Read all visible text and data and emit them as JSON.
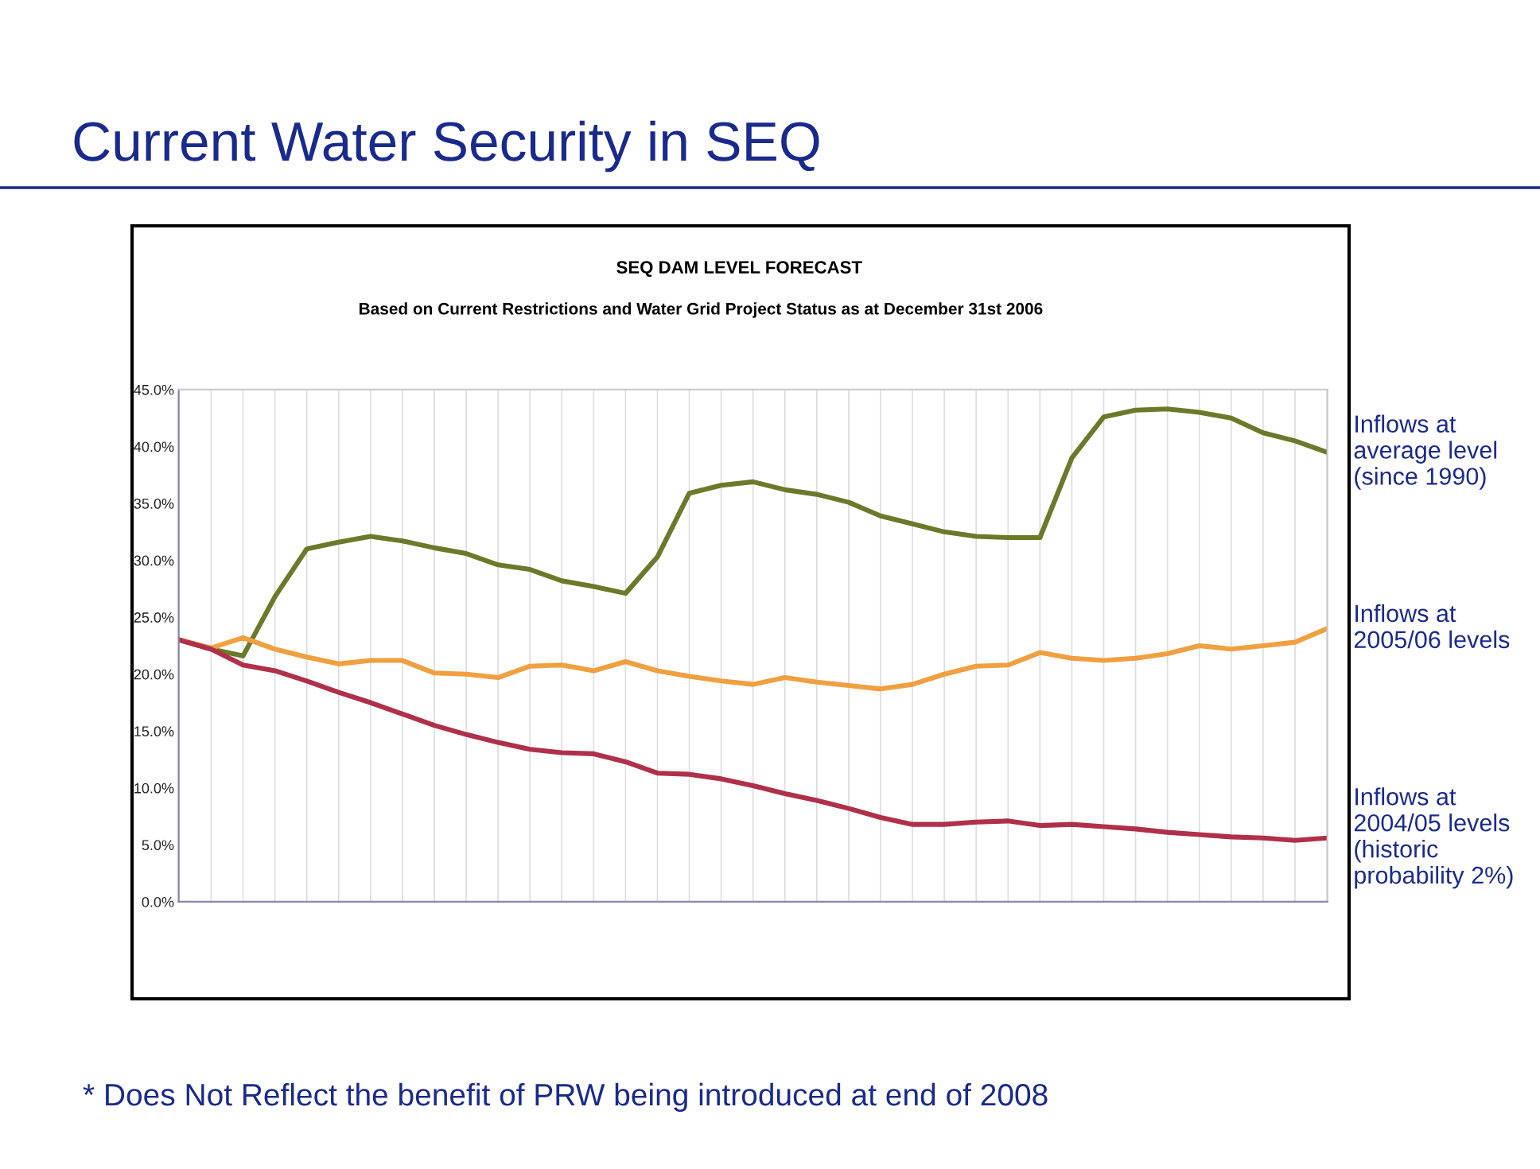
{
  "chart_data": {
    "type": "line",
    "title": "SEQ DAM LEVEL FORECAST",
    "subtitle": "Based on Current Restrictions and Water Grid Project Status as at December 31st 2006",
    "annotations": [
      "Current Water Security in SEQ",
      "* Does Not Reflect the benefit of PRW being introduced at end of 2008"
    ],
    "categories": [
      null,
      null,
      null,
      null,
      null,
      null,
      null,
      null,
      null,
      null,
      null,
      null,
      null,
      null,
      null,
      null,
      null,
      null,
      null,
      null,
      null,
      null,
      null,
      null,
      null,
      null,
      null,
      null,
      null,
      null,
      null,
      null,
      null,
      null,
      null,
      null,
      null
    ],
    "series": [
      {
        "name": "Inflows at average level (since 1990)",
        "color": "#6b7a2a",
        "values": [
          23.0,
          22.2,
          21.6,
          26.8,
          31.0,
          31.6,
          32.1,
          31.7,
          31.1,
          30.6,
          29.6,
          29.2,
          28.2,
          27.7,
          27.1,
          30.3,
          35.9,
          36.6,
          36.9,
          36.2,
          35.8,
          35.1,
          33.9,
          33.2,
          32.5,
          32.1,
          32.0,
          32.0,
          39.0,
          42.6,
          43.2,
          43.3,
          43.0,
          42.5,
          41.2,
          40.5,
          39.5
        ]
      },
      {
        "name": "Inflows at 2005/06 levels",
        "color": "#f0a040",
        "values": [
          23.0,
          22.3,
          23.2,
          22.2,
          21.5,
          20.9,
          21.2,
          21.2,
          20.1,
          20.0,
          19.7,
          20.7,
          20.8,
          20.3,
          21.1,
          20.3,
          19.8,
          19.4,
          19.1,
          19.7,
          19.3,
          19.0,
          18.7,
          19.1,
          20.0,
          20.7,
          20.8,
          21.9,
          21.4,
          21.2,
          21.4,
          21.8,
          22.5,
          22.2,
          22.5,
          22.8,
          24.0
        ]
      },
      {
        "name": "Inflows at 2004/05 levels (historic probability 2%)",
        "color": "#b0304a",
        "values": [
          23.0,
          22.2,
          20.8,
          20.3,
          19.4,
          18.4,
          17.5,
          16.5,
          15.5,
          14.7,
          14.0,
          13.4,
          13.1,
          13.0,
          12.3,
          11.3,
          11.2,
          10.8,
          10.2,
          9.5,
          8.9,
          8.2,
          7.4,
          6.8,
          6.8,
          7.0,
          7.1,
          6.7,
          6.8,
          6.6,
          6.4,
          6.1,
          5.9,
          5.7,
          5.6,
          5.4,
          5.6
        ]
      }
    ],
    "ylim": [
      0,
      45
    ],
    "yticks": [
      {
        "value": 0,
        "label": "0.0%"
      },
      {
        "value": 5,
        "label": "5.0%"
      },
      {
        "value": 10,
        "label": "10.0%"
      },
      {
        "value": 15,
        "label": "15.0%"
      },
      {
        "value": 20,
        "label": "20.0%"
      },
      {
        "value": 25,
        "label": "25.0%"
      },
      {
        "value": 30,
        "label": "30.0%"
      },
      {
        "value": 35,
        "label": "35.0%"
      },
      {
        "value": 40,
        "label": "40.0%"
      },
      {
        "value": 45,
        "label": "45.0%"
      }
    ],
    "grid": "x",
    "legend": false,
    "tick_labels": "y",
    "line_style": "solid",
    "marker": "none"
  }
}
